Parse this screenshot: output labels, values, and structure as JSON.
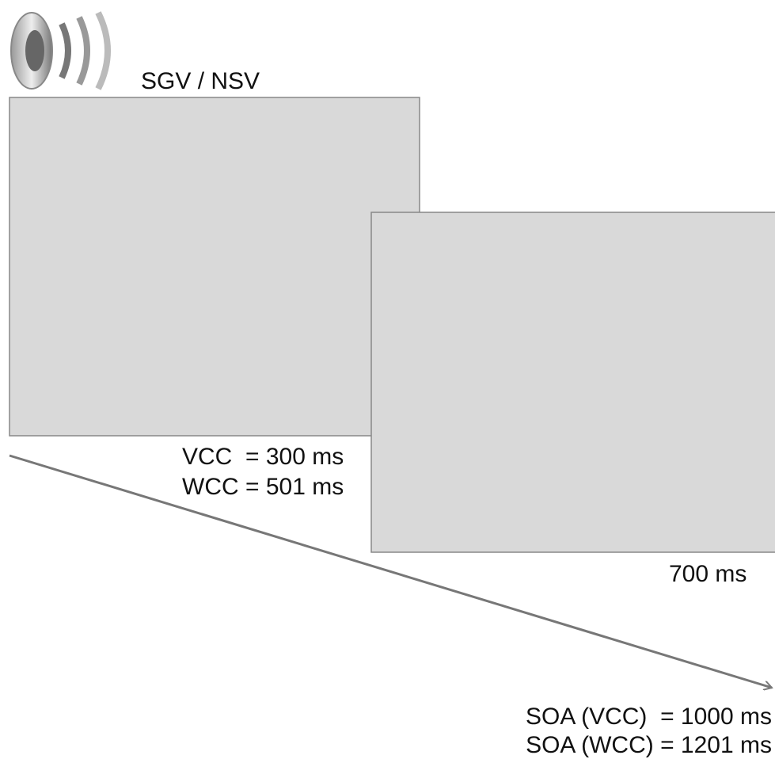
{
  "stimulus": {
    "label": "SGV / NSV"
  },
  "first_frame": {
    "durations": [
      "VCC  = 300 ms",
      "WCC = 501 ms"
    ]
  },
  "second_frame": {
    "duration": "700 ms"
  },
  "timeline": {
    "soa": [
      "SOA (VCC)  = 1000 ms",
      "SOA (WCC) = 1201 ms"
    ]
  }
}
